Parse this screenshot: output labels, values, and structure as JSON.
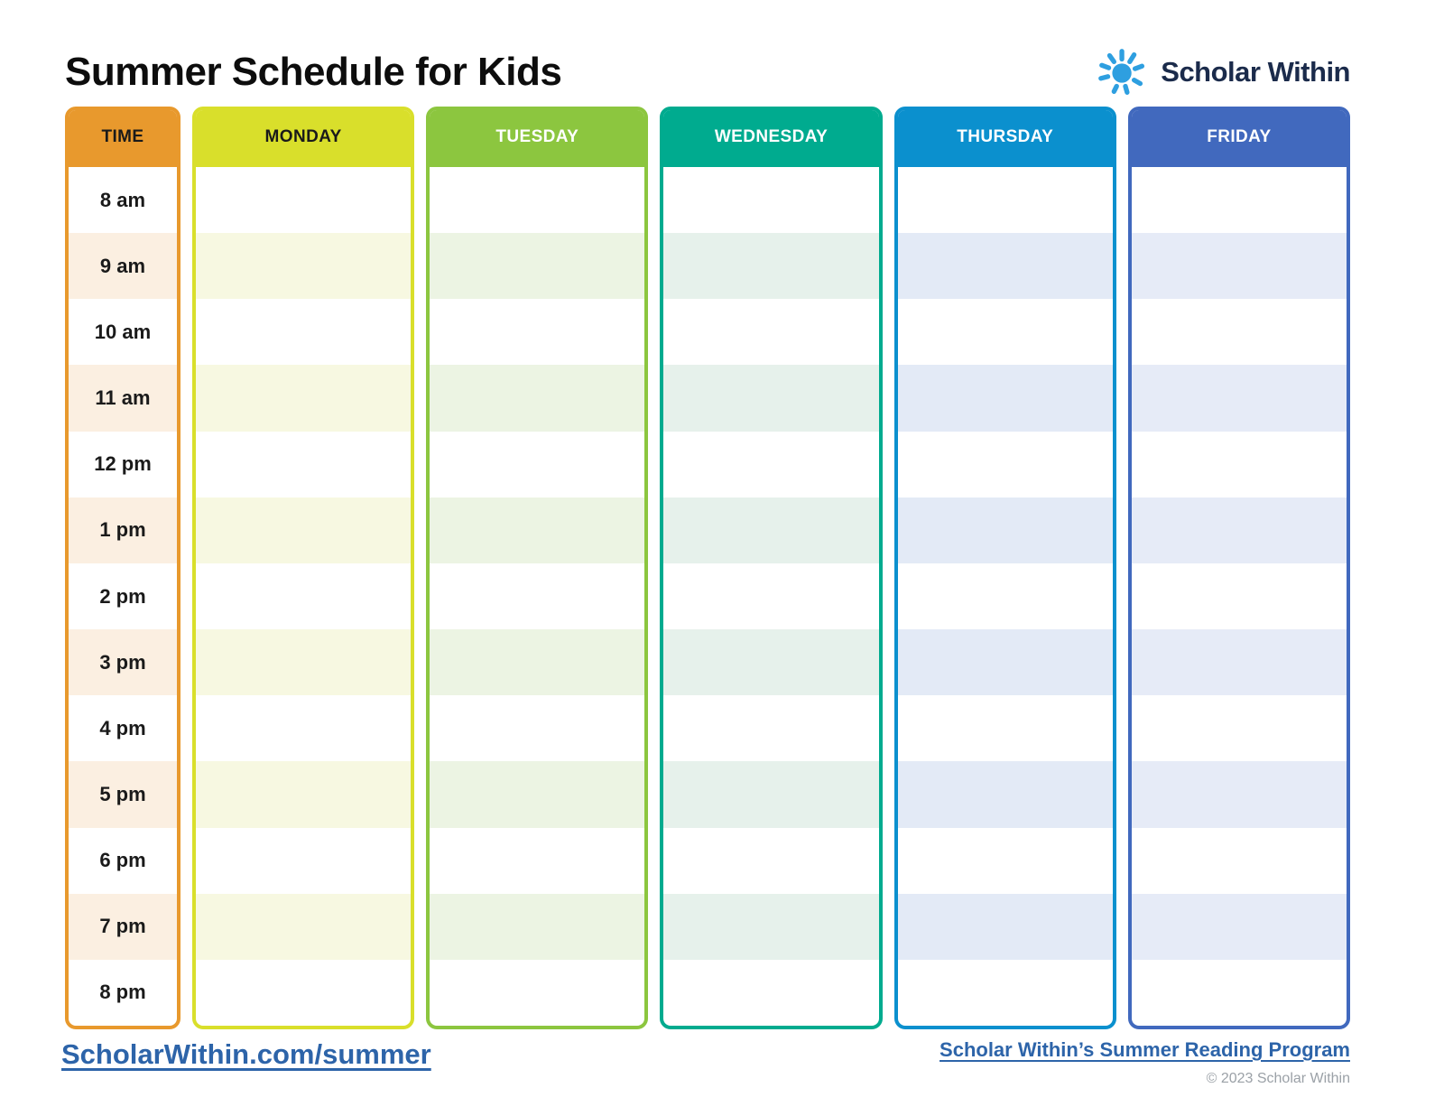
{
  "title": "Summer Schedule for Kids",
  "brand": {
    "name": "Scholar Within",
    "sun_icon_color": "#2e9fe0",
    "text_color": "#1b2b4b"
  },
  "schedule": {
    "time_column": {
      "header": "TIME",
      "color": "#e8992d",
      "tint": "#fbefe1",
      "header_text_color": "#1a1a1a"
    },
    "times": [
      "8 am",
      "9 am",
      "10 am",
      "11 am",
      "12 pm",
      "1 pm",
      "2 pm",
      "3 pm",
      "4 pm",
      "5 pm",
      "6 pm",
      "7 pm",
      "8 pm"
    ],
    "days": [
      {
        "label": "MONDAY",
        "color": "#d9df2b",
        "tint": "#f7f8e1",
        "header_text_color": "#1a1a1a"
      },
      {
        "label": "TUESDAY",
        "color": "#8cc63f",
        "tint": "#ecf4e3",
        "header_text_color": "#ffffff"
      },
      {
        "label": "WEDNESDAY",
        "color": "#00ab8f",
        "tint": "#e6f1eb",
        "header_text_color": "#ffffff"
      },
      {
        "label": "THURSDAY",
        "color": "#0b90ce",
        "tint": "#e3eaf6",
        "header_text_color": "#ffffff"
      },
      {
        "label": "FRIDAY",
        "color": "#4169be",
        "tint": "#e6ebf7",
        "header_text_color": "#ffffff"
      }
    ]
  },
  "footer": {
    "left_link": "ScholarWithin.com/summer",
    "right_link": "Scholar Within’s Summer Reading Program",
    "copyright": "© 2023 Scholar Within",
    "link_color": "#2d64a9"
  }
}
